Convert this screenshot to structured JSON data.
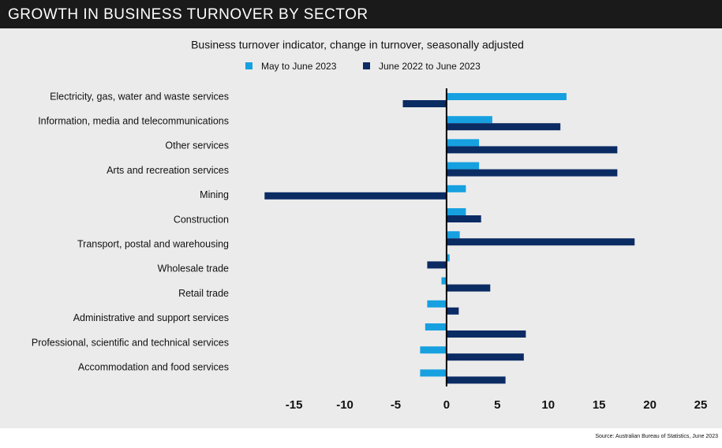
{
  "chart_data": {
    "type": "bar",
    "orientation": "horizontal",
    "header": "GROWTH IN BUSINESS TURNOVER BY SECTOR",
    "title": "Business turnover indicator, change in turnover, seasonally adjusted",
    "source": "Source: Australian Bureau of Statistics, June 2023",
    "categories": [
      "Electricity, gas, water and waste services",
      "Information, media and telecommunications",
      "Other services",
      "Arts and recreation services",
      "Mining",
      "Construction",
      "Transport, postal and warehousing",
      "Wholesale trade",
      "Retail trade",
      "Administrative and support services",
      "Professional, scientific and technical services",
      "Accommodation and food services",
      null
    ],
    "series": [
      {
        "name": "May to June 2023",
        "color": "#16a0e0",
        "values": [
          11.8,
          4.5,
          3.2,
          3.2,
          1.9,
          1.9,
          1.3,
          0.3,
          -0.5,
          -1.9,
          -2.1,
          -2.6,
          -2.6
        ]
      },
      {
        "name": "June 2022 to June 2023",
        "color": "#0b2b63",
        "values": [
          -4.3,
          11.2,
          16.8,
          16.8,
          -17.9,
          3.4,
          18.5,
          -1.9,
          4.3,
          1.2,
          7.8,
          7.6,
          5.8
        ]
      }
    ],
    "xlim": [
      -18,
      25
    ],
    "xticks": [
      -15,
      -10,
      -5,
      0,
      5,
      10,
      15,
      20,
      25
    ],
    "grid": false,
    "legend": "top"
  }
}
